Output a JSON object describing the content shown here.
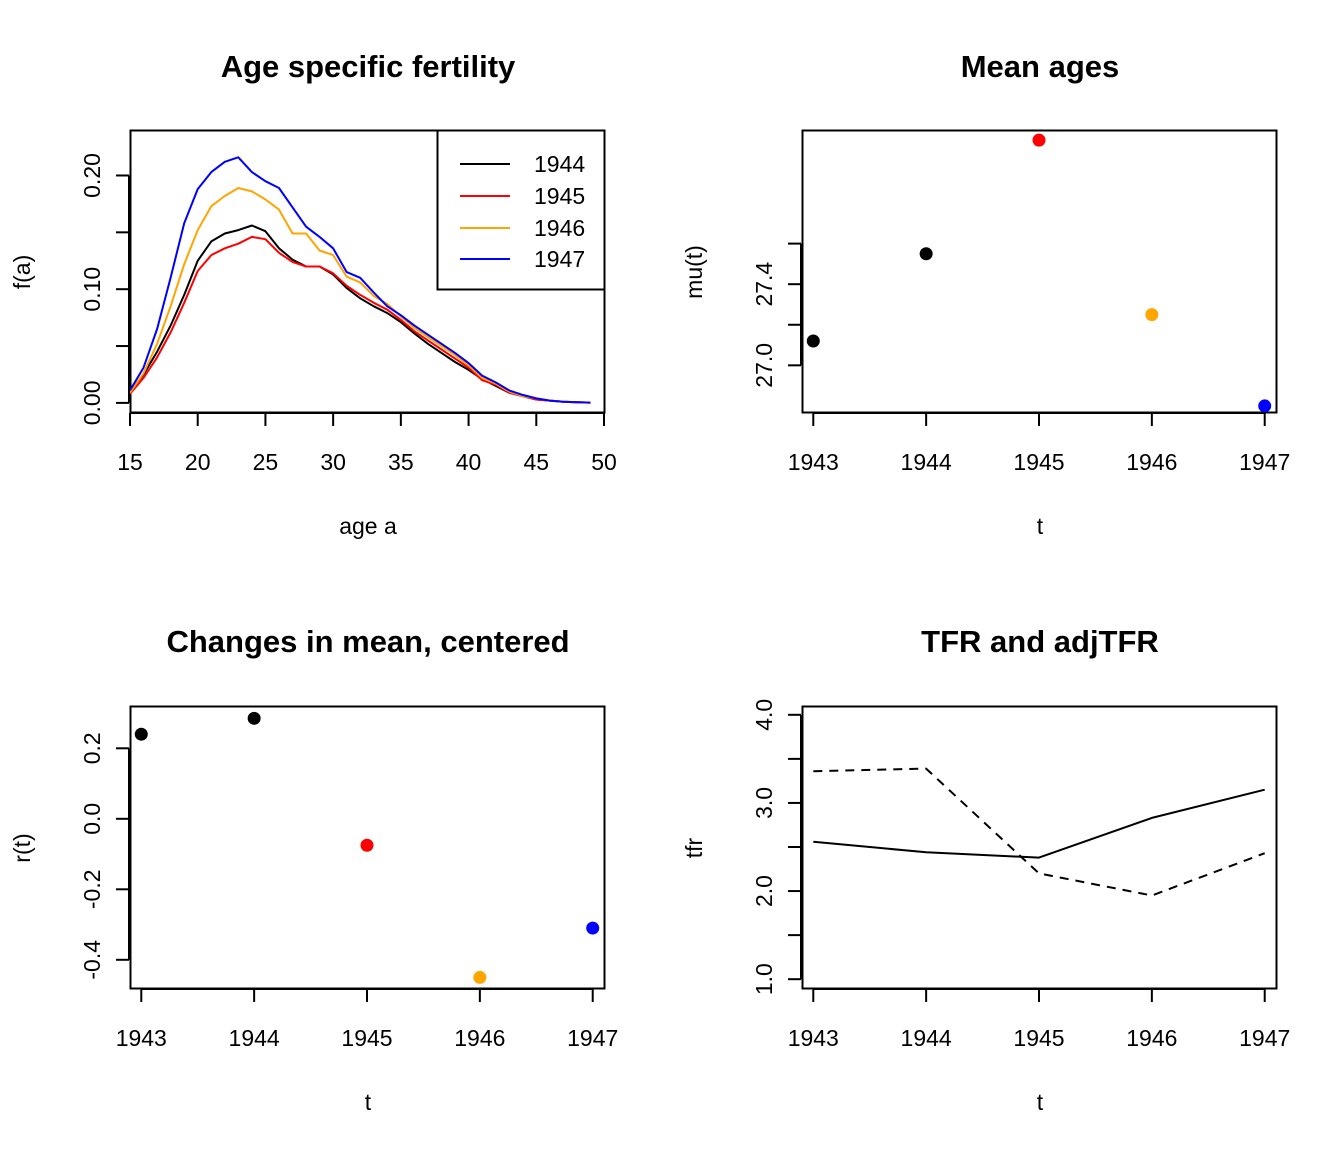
{
  "chart_data": [
    {
      "type": "line",
      "title": "Age specific fertility",
      "xlabel": "age a",
      "ylabel": "f(a)",
      "xlim": [
        15,
        50
      ],
      "ylim": [
        -0.008,
        0.24
      ],
      "xticks": [
        "15",
        "20",
        "25",
        "30",
        "35",
        "40",
        "45",
        "50"
      ],
      "yticks": [
        "0.00",
        "0.10",
        "0.20"
      ],
      "yminor": [
        0.05,
        0.15
      ],
      "legend_position": "top-right",
      "x": [
        15,
        16,
        17,
        18,
        19,
        20,
        21,
        22,
        23,
        24,
        25,
        26,
        27,
        28,
        29,
        30,
        31,
        32,
        33,
        34,
        35,
        36,
        37,
        38,
        39,
        40,
        41,
        42,
        43,
        44,
        45,
        46,
        47,
        48,
        49
      ],
      "series": [
        {
          "name": "1944",
          "color": "#000000",
          "values": [
            0.01,
            0.025,
            0.045,
            0.068,
            0.095,
            0.125,
            0.142,
            0.149,
            0.152,
            0.156,
            0.151,
            0.136,
            0.126,
            0.12,
            0.12,
            0.113,
            0.101,
            0.092,
            0.085,
            0.079,
            0.071,
            0.061,
            0.052,
            0.044,
            0.036,
            0.029,
            0.021,
            0.015,
            0.009,
            0.006,
            0.003,
            0.002,
            0.001,
            0.0005,
            0.0003
          ]
        },
        {
          "name": "1945",
          "color": "#ff0000",
          "values": [
            0.008,
            0.022,
            0.04,
            0.062,
            0.088,
            0.116,
            0.13,
            0.136,
            0.14,
            0.146,
            0.144,
            0.132,
            0.124,
            0.12,
            0.12,
            0.114,
            0.103,
            0.095,
            0.088,
            0.082,
            0.073,
            0.063,
            0.055,
            0.047,
            0.039,
            0.031,
            0.02,
            0.016,
            0.009,
            0.006,
            0.003,
            0.002,
            0.001,
            0.0005,
            0.0003
          ]
        },
        {
          "name": "1946",
          "color": "#ffa500",
          "values": [
            0.009,
            0.026,
            0.052,
            0.085,
            0.122,
            0.152,
            0.173,
            0.182,
            0.189,
            0.186,
            0.179,
            0.17,
            0.149,
            0.149,
            0.134,
            0.13,
            0.111,
            0.106,
            0.094,
            0.087,
            0.076,
            0.066,
            0.058,
            0.05,
            0.042,
            0.033,
            0.022,
            0.017,
            0.01,
            0.006,
            0.004,
            0.002,
            0.001,
            0.0005,
            0.0003
          ]
        },
        {
          "name": "1947",
          "color": "#0000ff",
          "values": [
            0.011,
            0.031,
            0.065,
            0.11,
            0.158,
            0.188,
            0.203,
            0.212,
            0.216,
            0.203,
            0.195,
            0.189,
            0.172,
            0.155,
            0.146,
            0.136,
            0.115,
            0.11,
            0.097,
            0.085,
            0.077,
            0.068,
            0.06,
            0.052,
            0.044,
            0.035,
            0.024,
            0.018,
            0.011,
            0.007,
            0.004,
            0.002,
            0.001,
            0.0005,
            0.0003
          ]
        }
      ]
    },
    {
      "type": "scatter",
      "title": "Mean ages",
      "xlabel": "t",
      "ylabel": "mu(t)",
      "xlim": [
        1942.9,
        1947.1
      ],
      "ylim": [
        26.77,
        28.16
      ],
      "xticks": [
        "1943",
        "1944",
        "1945",
        "1946",
        "1947"
      ],
      "yticks": [
        "27.0",
        "27.4"
      ],
      "yminor": [
        27.2,
        27.6
      ],
      "points": [
        {
          "x": 1943,
          "y": 27.12,
          "color": "#000000"
        },
        {
          "x": 1944,
          "y": 27.55,
          "color": "#000000"
        },
        {
          "x": 1945,
          "y": 28.11,
          "color": "#ff0000"
        },
        {
          "x": 1946,
          "y": 27.25,
          "color": "#ffa500"
        },
        {
          "x": 1947,
          "y": 26.8,
          "color": "#0000ff"
        }
      ]
    },
    {
      "type": "scatter",
      "title": "Changes in mean, centered",
      "xlabel": "t",
      "ylabel": "r(t)",
      "xlim": [
        1942.9,
        1947.1
      ],
      "ylim": [
        -0.48,
        0.32
      ],
      "xticks": [
        "1943",
        "1944",
        "1945",
        "1946",
        "1947"
      ],
      "yticks": [
        "-0.4",
        "-0.2",
        "0.0",
        "0.2"
      ],
      "yminor": [],
      "points": [
        {
          "x": 1943,
          "y": 0.24,
          "color": "#000000"
        },
        {
          "x": 1944,
          "y": 0.285,
          "color": "#000000"
        },
        {
          "x": 1945,
          "y": -0.075,
          "color": "#ff0000"
        },
        {
          "x": 1946,
          "y": -0.45,
          "color": "#ffa500"
        },
        {
          "x": 1947,
          "y": -0.31,
          "color": "#0000ff"
        }
      ]
    },
    {
      "type": "line",
      "title": "TFR and adjTFR",
      "xlabel": "t",
      "ylabel": "tfr",
      "xlim": [
        1942.9,
        1947.1
      ],
      "ylim": [
        0.9,
        4.1
      ],
      "xticks": [
        "1943",
        "1944",
        "1945",
        "1946",
        "1947"
      ],
      "yticks": [
        "1.0",
        "2.0",
        "3.0",
        "4.0"
      ],
      "yminor": [
        1.5,
        2.5,
        3.5
      ],
      "x": [
        1943,
        1944,
        1945,
        1946,
        1947
      ],
      "series": [
        {
          "style": "solid",
          "color": "#000000",
          "values": [
            2.56,
            2.44,
            2.38,
            2.83,
            3.15
          ]
        },
        {
          "style": "dashed",
          "color": "#000000",
          "values": [
            3.36,
            3.39,
            2.2,
            1.95,
            2.43
          ]
        }
      ]
    }
  ]
}
